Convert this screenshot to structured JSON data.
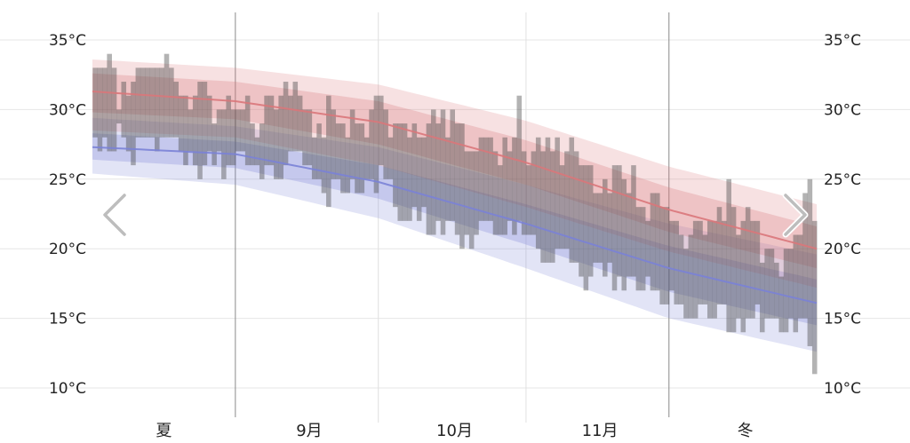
{
  "chart_data": {
    "type": "area",
    "title": "",
    "xlabel": "",
    "ylabel": "",
    "ylim": [
      9,
      36
    ],
    "yticks": [
      "35°C",
      "30°C",
      "25°C",
      "20°C",
      "15°C",
      "10°C"
    ],
    "ytick_values": [
      35,
      30,
      25,
      20,
      15,
      10
    ],
    "x_range_days": [
      0,
      152
    ],
    "month_labels": [
      "夏",
      "9月",
      "10月",
      "11月",
      "冬"
    ],
    "month_label_days": [
      15,
      45.5,
      76,
      106.5,
      137
    ],
    "month_boundaries": [
      30,
      60,
      91,
      121
    ],
    "major_boundaries": [
      30,
      121
    ],
    "grid": true,
    "series": [
      {
        "name": "",
        "kind": "band",
        "color": "#d9777a",
        "x": [
          0,
          30,
          60,
          91,
          121,
          152
        ],
        "p10": [
          28.5,
          28.0,
          26.0,
          23.0,
          19.8,
          17.2
        ],
        "p25": [
          29.8,
          29.3,
          27.5,
          24.6,
          21.2,
          18.6
        ],
        "mean": [
          31.3,
          30.6,
          29.1,
          26.2,
          22.8,
          20.0
        ],
        "p75": [
          32.6,
          32.0,
          30.6,
          27.8,
          24.4,
          21.6
        ],
        "p90": [
          33.6,
          33.0,
          31.8,
          29.2,
          25.9,
          23.2
        ]
      },
      {
        "name": "",
        "kind": "band",
        "color": "#7a82d6",
        "x": [
          0,
          30,
          60,
          91,
          121,
          152
        ],
        "p10": [
          25.4,
          24.6,
          22.2,
          18.6,
          15.0,
          12.6
        ],
        "p25": [
          26.4,
          25.8,
          23.6,
          20.3,
          16.9,
          14.5
        ],
        "mean": [
          27.3,
          26.8,
          24.8,
          21.8,
          18.6,
          16.1
        ],
        "p75": [
          28.3,
          27.7,
          26.0,
          23.2,
          20.2,
          17.8
        ],
        "p90": [
          29.4,
          28.8,
          27.3,
          24.6,
          21.8,
          19.6
        ]
      }
    ],
    "observed": {
      "name": "",
      "color": "#4a4a4a",
      "days": [
        0,
        1,
        2,
        3,
        4,
        5,
        6,
        7,
        8,
        9,
        10,
        11,
        12,
        13,
        14,
        15,
        16,
        17,
        18,
        19,
        20,
        21,
        22,
        23,
        24,
        25,
        26,
        27,
        28,
        29,
        30,
        31,
        32,
        33,
        34,
        35,
        36,
        37,
        38,
        39,
        40,
        41,
        42,
        43,
        44,
        45,
        46,
        47,
        48,
        49,
        50,
        51,
        52,
        53,
        54,
        55,
        56,
        57,
        58,
        59,
        60,
        61,
        62,
        63,
        64,
        65,
        66,
        67,
        68,
        69,
        70,
        71,
        72,
        73,
        74,
        75,
        76,
        77,
        78,
        79,
        80,
        81,
        82,
        83,
        84,
        85,
        86,
        87,
        88,
        89,
        90,
        91,
        92,
        93,
        94,
        95,
        96,
        97,
        98,
        99,
        100,
        101,
        102,
        103,
        104,
        105,
        106,
        107,
        108,
        109,
        110,
        111,
        112,
        113,
        114,
        115,
        116,
        117,
        118,
        119,
        120,
        121,
        122,
        123,
        124,
        125,
        126,
        127,
        128,
        129,
        130,
        131,
        132,
        133,
        134,
        135,
        136,
        137,
        138,
        139,
        140,
        141,
        142,
        143,
        144,
        145,
        146,
        147,
        148,
        149,
        150,
        151
      ],
      "high": [
        33,
        33,
        33,
        34,
        33,
        30,
        32,
        31,
        32,
        33,
        33,
        33,
        33,
        33,
        33,
        34,
        33,
        32,
        31,
        31,
        30,
        31,
        32,
        32,
        31,
        29,
        30,
        30,
        31,
        30,
        30,
        30,
        31,
        29,
        28,
        29,
        31,
        31,
        30,
        31,
        32,
        31,
        32,
        31,
        30,
        30,
        28,
        29,
        28,
        31,
        30,
        29,
        29,
        28,
        30,
        29,
        29,
        28,
        30,
        31,
        31,
        30,
        28,
        29,
        29,
        29,
        28,
        29,
        28,
        28,
        29,
        30,
        29,
        30,
        28,
        30,
        29,
        29,
        27,
        27,
        27,
        28,
        28,
        28,
        27,
        26,
        28,
        27,
        28,
        31,
        27,
        26,
        27,
        28,
        27,
        28,
        27,
        28,
        26,
        27,
        28,
        27,
        26,
        26,
        26,
        24,
        24,
        25,
        24,
        26,
        26,
        25,
        24,
        26,
        23,
        23,
        22,
        24,
        24,
        23,
        23,
        22,
        22,
        21,
        20,
        21,
        22,
        22,
        21,
        22,
        22,
        23,
        22,
        25,
        23,
        21,
        22,
        23,
        22,
        22,
        19,
        20,
        20,
        19,
        18,
        20,
        20,
        21,
        21,
        24,
        25,
        22
      ],
      "low": [
        28,
        27,
        28,
        27,
        27,
        29,
        28,
        27,
        26,
        28,
        28,
        28,
        28,
        27,
        28,
        28,
        28,
        28,
        27,
        26,
        27,
        26,
        25,
        26,
        27,
        26,
        27,
        25,
        26,
        26,
        27,
        27,
        26,
        26,
        26,
        25,
        26,
        26,
        25,
        25,
        26,
        27,
        27,
        27,
        26,
        26,
        25,
        25,
        24,
        23,
        25,
        25,
        24,
        24,
        25,
        24,
        24,
        25,
        25,
        24,
        26,
        25,
        25,
        23,
        22,
        22,
        22,
        23,
        22,
        23,
        21,
        21,
        22,
        21,
        22,
        22,
        21,
        20,
        21,
        20,
        21,
        22,
        22,
        22,
        21,
        21,
        21,
        22,
        21,
        22,
        21,
        21,
        21,
        20,
        19,
        19,
        19,
        20,
        20,
        20,
        19,
        19,
        18,
        17,
        18,
        19,
        19,
        18,
        19,
        17,
        18,
        17,
        18,
        18,
        17,
        17,
        18,
        17,
        17,
        16,
        16,
        17,
        16,
        16,
        15,
        15,
        15,
        16,
        16,
        15,
        15,
        16,
        16,
        14,
        14,
        15,
        14,
        15,
        15,
        16,
        14,
        15,
        15,
        15,
        14,
        14,
        15,
        14,
        15,
        15,
        13,
        11
      ]
    }
  },
  "nav": {
    "prev_icon": "chevron-left-icon",
    "next_icon": "chevron-right-icon"
  }
}
